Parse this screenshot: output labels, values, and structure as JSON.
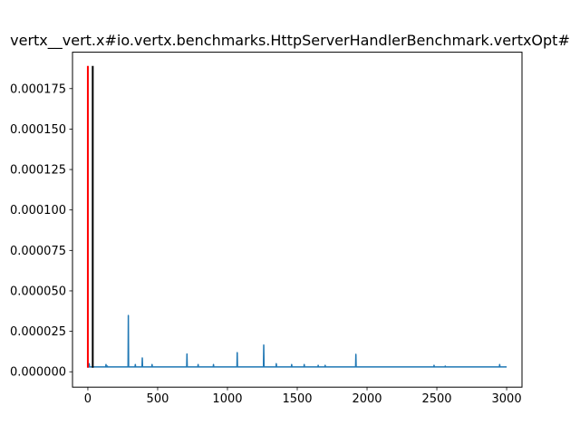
{
  "chart_data": {
    "type": "line",
    "title": "vertx__vert.x#io.vertx.benchmarks.HttpServerHandlerBenchmark.vertxOpt#",
    "xlabel": "",
    "ylabel": "",
    "xlim": [
      -110,
      3110
    ],
    "ylim": [
      -9.5e-06,
      0.0001975
    ],
    "xticks": [
      0,
      500,
      1000,
      1500,
      2000,
      2500,
      3000
    ],
    "xtick_labels": [
      "0",
      "500",
      "1000",
      "1500",
      "2000",
      "2500",
      "3000"
    ],
    "yticks": [
      0.0,
      2.5e-05,
      5e-05,
      7.5e-05,
      0.0001,
      0.000125,
      0.00015,
      0.000175
    ],
    "ytick_labels": [
      "0.000000",
      "0.000025",
      "0.000050",
      "0.000075",
      "0.000100",
      "0.000125",
      "0.000150",
      "0.000175"
    ],
    "grid": false,
    "series": [
      {
        "color": "#1f77b4",
        "baseline": 3e-06,
        "x_range": [
          0,
          3000
        ],
        "spikes": [
          [
            10,
            5e-06
          ],
          [
            130,
            4.5e-06
          ],
          [
            140,
            3.5e-06
          ],
          [
            290,
            3.48e-05
          ],
          [
            340,
            4.5e-06
          ],
          [
            390,
            8.5e-06
          ],
          [
            460,
            4.5e-06
          ],
          [
            710,
            1.1e-05
          ],
          [
            790,
            4.5e-06
          ],
          [
            900,
            4.5e-06
          ],
          [
            1070,
            1.18e-05
          ],
          [
            1260,
            1.65e-05
          ],
          [
            1350,
            5e-06
          ],
          [
            1460,
            4.5e-06
          ],
          [
            1550,
            4.5e-06
          ],
          [
            1650,
            4e-06
          ],
          [
            1700,
            4e-06
          ],
          [
            1920,
            1.08e-05
          ],
          [
            2480,
            4e-06
          ],
          [
            2560,
            3.5e-06
          ],
          [
            2950,
            4.5e-06
          ]
        ]
      }
    ],
    "vlines": [
      {
        "x": 0,
        "y0": 2.5e-06,
        "y1": 0.000189,
        "color": "#ff0000"
      },
      {
        "x": 35,
        "y0": 2.5e-06,
        "y1": 0.000189,
        "color": "#000000"
      }
    ]
  }
}
